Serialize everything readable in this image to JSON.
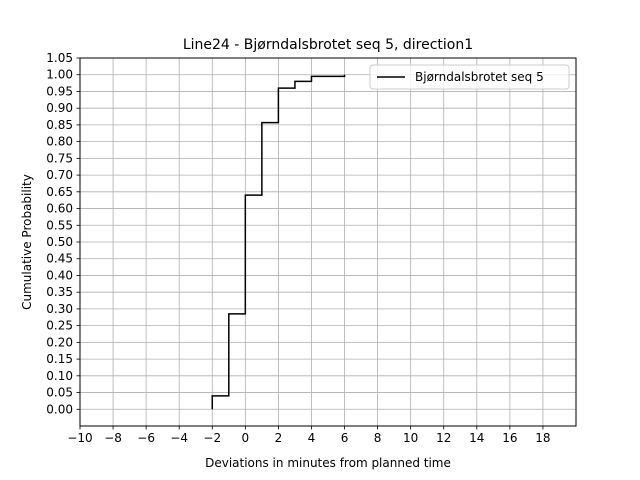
{
  "chart_data": {
    "type": "line",
    "step": true,
    "title": "Line24 - Bjørndalsbrotet seq 5, direction1",
    "xlabel": "Deviations in minutes from planned time",
    "ylabel": "Cumulative Probability",
    "xlim": [
      -10,
      20
    ],
    "ylim": [
      -0.05,
      1.05
    ],
    "x_ticks": [
      -10,
      -8,
      -6,
      -4,
      -2,
      0,
      2,
      4,
      6,
      8,
      10,
      12,
      14,
      16,
      18
    ],
    "x_tick_labels": [
      "−10",
      "−8",
      "−6",
      "−4",
      "−2",
      "0",
      "2",
      "4",
      "6",
      "8",
      "10",
      "12",
      "14",
      "16",
      "18"
    ],
    "y_ticks": [
      0.0,
      0.05,
      0.1,
      0.15,
      0.2,
      0.25,
      0.3,
      0.35,
      0.4,
      0.45,
      0.5,
      0.55,
      0.6,
      0.65,
      0.7,
      0.75,
      0.8,
      0.85,
      0.9,
      0.95,
      1.0,
      1.05
    ],
    "y_tick_labels": [
      "0.00",
      "0.05",
      "0.10",
      "0.15",
      "0.20",
      "0.25",
      "0.30",
      "0.35",
      "0.40",
      "0.45",
      "0.50",
      "0.55",
      "0.60",
      "0.65",
      "0.70",
      "0.75",
      "0.80",
      "0.85",
      "0.90",
      "0.95",
      "1.00",
      "1.05"
    ],
    "grid": true,
    "legend_position": "top-right",
    "series": [
      {
        "name": "Bjørndalsbrotet seq 5",
        "color": "#000000",
        "x": [
          -2,
          -1,
          0,
          1,
          2,
          3,
          4,
          5,
          6
        ],
        "y": [
          0.04,
          0.285,
          0.64,
          0.857,
          0.96,
          0.98,
          0.995,
          0.995,
          1.0
        ]
      }
    ]
  }
}
